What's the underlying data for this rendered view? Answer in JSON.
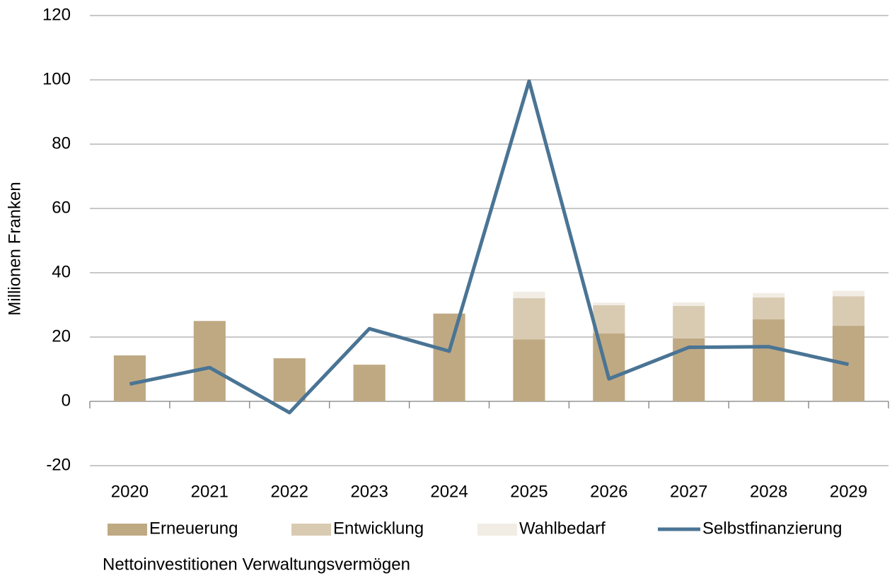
{
  "chart_data": {
    "type": "bar_line",
    "y_label": "Millionen Franken",
    "categories": [
      "2020",
      "2021",
      "2022",
      "2023",
      "2024",
      "2025",
      "2026",
      "2027",
      "2028",
      "2029"
    ],
    "series": [
      {
        "name": "Erneuerung",
        "type": "bar",
        "color": "#bfa983",
        "values": [
          14.3,
          25.0,
          13.4,
          11.4,
          27.3,
          19.3,
          21.1,
          19.6,
          25.5,
          23.5
        ]
      },
      {
        "name": "Entwicklung",
        "type": "bar",
        "color": "#d9cbb2",
        "values": [
          0,
          0,
          0,
          0,
          0,
          12.8,
          8.8,
          10.1,
          6.8,
          9.2
        ]
      },
      {
        "name": "Wahlbedarf",
        "type": "bar",
        "color": "#f2ede4",
        "values": [
          0,
          0,
          0,
          0,
          0,
          2.0,
          0.8,
          1.1,
          1.4,
          1.7
        ]
      },
      {
        "name": "Selbstfinanzierung",
        "type": "line",
        "color": "#4a7494",
        "values": [
          5.4,
          10.5,
          -3.5,
          22.6,
          15.6,
          99.6,
          7.0,
          16.8,
          17.0,
          11.5
        ]
      }
    ],
    "legend_note": "Nettoinvestitionen Verwaltungsvermögen",
    "ylim": [
      -20,
      120
    ],
    "yticks": [
      -20,
      0,
      20,
      40,
      60,
      80,
      100,
      120
    ],
    "grid": true
  }
}
